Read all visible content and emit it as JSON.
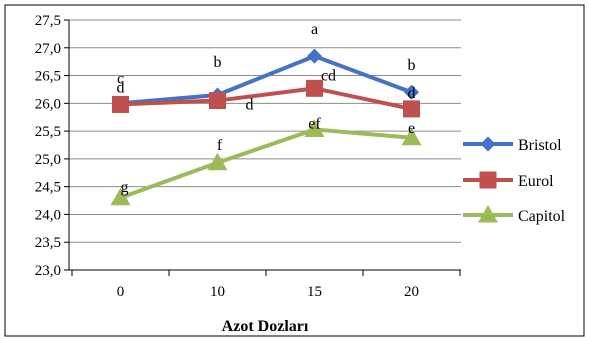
{
  "chart_data": {
    "type": "line",
    "xlabel": "Azot Dozları",
    "ylabel": "",
    "categories": [
      "0",
      "10",
      "15",
      "20"
    ],
    "ylim": [
      23.0,
      27.5
    ],
    "ystep": 0.5,
    "y_tick_labels": [
      "23,0",
      "23,5",
      "24,0",
      "24,5",
      "25,0",
      "25,5",
      "26,0",
      "26,5",
      "27,0",
      "27,5"
    ],
    "grid": true,
    "legend_position": "right",
    "series": [
      {
        "name": "Bristol",
        "color": "#4472C4",
        "marker": "diamond",
        "values": [
          26.0,
          26.15,
          26.85,
          26.2
        ],
        "point_labels": [
          "c",
          "b",
          "a",
          "b"
        ]
      },
      {
        "name": "Eurol",
        "color": "#C0504D",
        "marker": "square",
        "values": [
          25.98,
          26.05,
          26.27,
          25.9
        ],
        "point_labels": [
          "d",
          "d",
          "cd",
          "d"
        ]
      },
      {
        "name": "Capitol",
        "color": "#9BBB59",
        "marker": "triangle",
        "values": [
          24.3,
          24.93,
          25.53,
          25.38
        ],
        "point_labels": [
          "g",
          "f",
          "ef",
          "e"
        ]
      }
    ]
  }
}
